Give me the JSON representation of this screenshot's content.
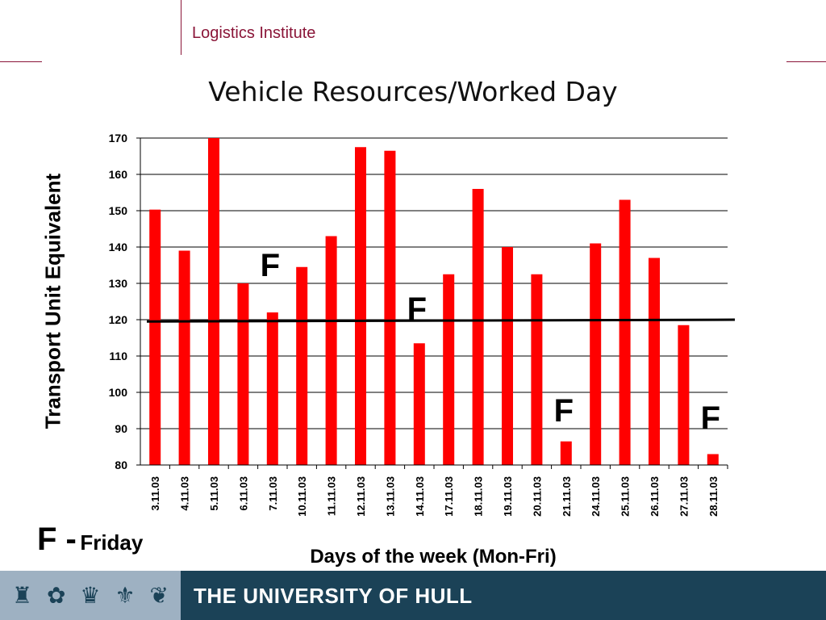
{
  "header": {
    "institute": "Logistics Institute"
  },
  "footer": {
    "university": "THE UNIVERSITY OF HULL",
    "crest_icons": [
      "tower-icon",
      "rose-icon",
      "crown-icon",
      "fleur-de-lis-icon",
      "bird-icon"
    ]
  },
  "legend": {
    "symbol": "F -",
    "meaning": "Friday"
  },
  "colors": {
    "bar": "#ff0000",
    "accent": "#8a1538",
    "footer": "#1b4257",
    "footer_crest": "#9eb1c2"
  },
  "chart_data": {
    "type": "bar",
    "title": "Vehicle Resources/Worked Day",
    "xlabel": "Days of the week (Mon-Fri)",
    "ylabel": "Transport Unit Equivalent",
    "categories": [
      "3.11.03",
      "4.11.03",
      "5.11.03",
      "6.11.03",
      "7.11.03",
      "10.11.03",
      "11.11.03",
      "12.11.03",
      "13.11.03",
      "14.11.03",
      "17.11.03",
      "18.11.03",
      "19.11.03",
      "20.11.03",
      "21.11.03",
      "24.11.03",
      "25.11.03",
      "26.11.03",
      "27.11.03",
      "28.11.03"
    ],
    "values": [
      150.3,
      139,
      170,
      130,
      122,
      134.5,
      143,
      167.5,
      166.5,
      113.5,
      132.5,
      156,
      140,
      132.5,
      86.5,
      141,
      153,
      137,
      118.5,
      83
    ],
    "ylim": [
      80,
      170
    ],
    "yticks": [
      80,
      90,
      100,
      110,
      120,
      130,
      140,
      150,
      160,
      170
    ],
    "grid": true,
    "reference_line": {
      "start": 119.5,
      "end": 120
    },
    "annotations": [
      {
        "text": "F",
        "category": "7.11.03",
        "y": 132
      },
      {
        "text": "F",
        "category": "14.11.03",
        "y": 120
      },
      {
        "text": "F",
        "category": "21.11.03",
        "y": 92
      },
      {
        "text": "F",
        "category": "28.11.03",
        "y": 90
      }
    ]
  }
}
